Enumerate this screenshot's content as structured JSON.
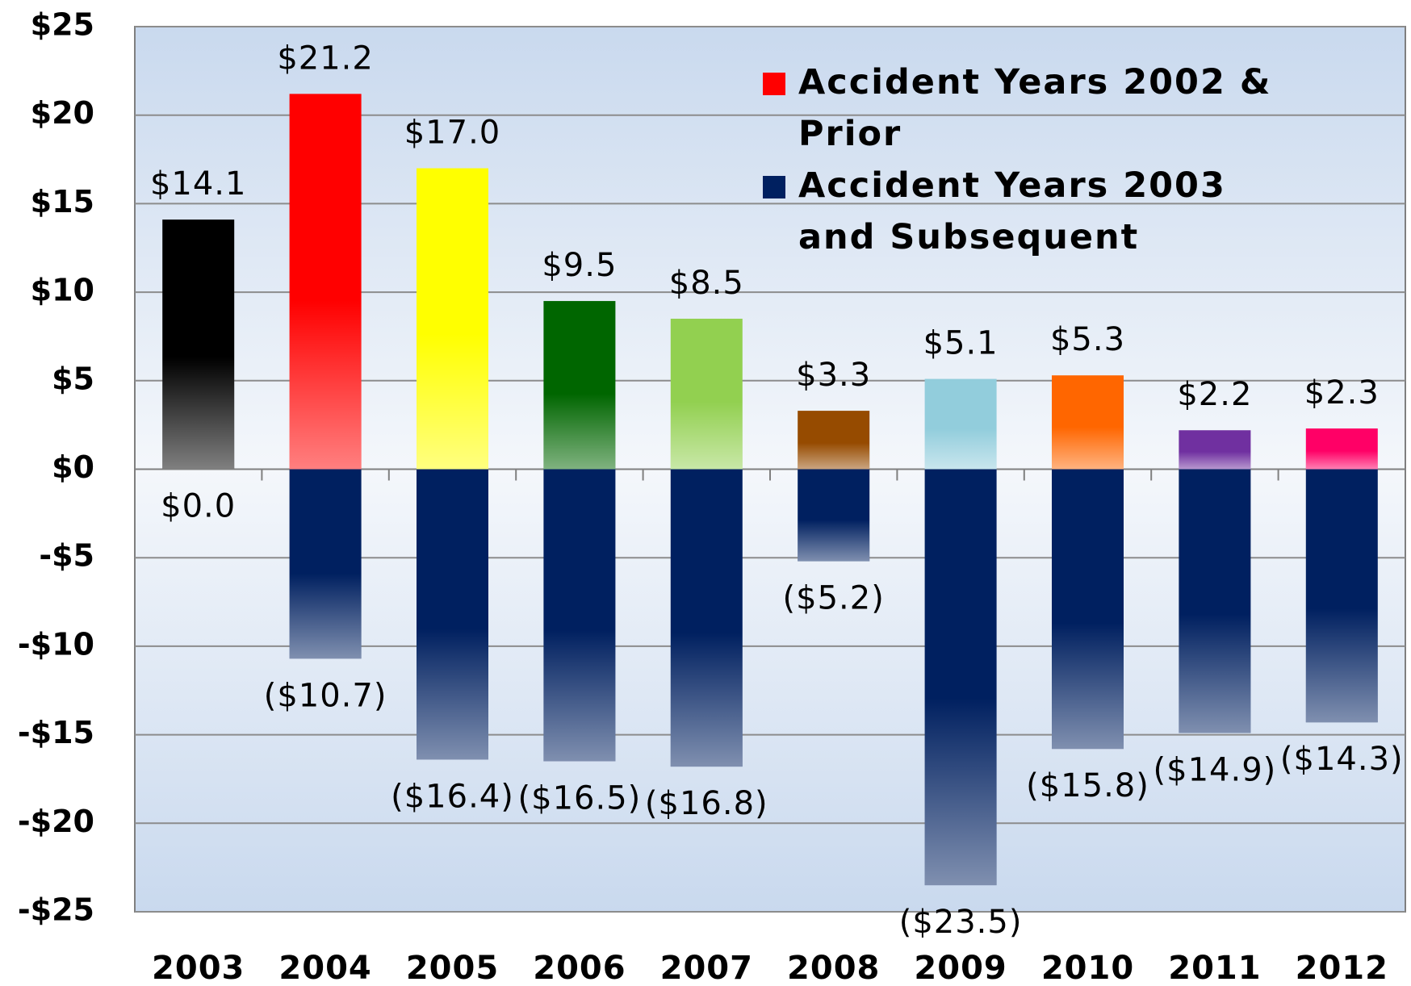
{
  "chart_data": {
    "type": "bar",
    "stacked": true,
    "categories": [
      "2003",
      "2004",
      "2005",
      "2006",
      "2007",
      "2008",
      "2009",
      "2010",
      "2011",
      "2012"
    ],
    "series": [
      {
        "name": "Accident Years 2002 & Prior",
        "color": "#ff0000",
        "colors": [
          "#000000",
          "#ff0000",
          "#ffff00",
          "#006600",
          "#92d050",
          "#964b00",
          "#92cddc",
          "#ff6600",
          "#7030a0",
          "#ff0066"
        ],
        "values": [
          14.1,
          21.2,
          17.0,
          9.5,
          8.5,
          3.3,
          5.1,
          5.3,
          2.2,
          2.3
        ],
        "value_labels": [
          "$14.1",
          "$21.2",
          "$17.0",
          "$9.5",
          "$8.5",
          "$3.3",
          "$5.1",
          "$5.3",
          "$2.2",
          "$2.3"
        ]
      },
      {
        "name": "Accident Years 2003 and Subsequent",
        "color": "#002060",
        "values": [
          0.0,
          -10.7,
          -16.4,
          -16.5,
          -16.8,
          -5.2,
          -23.5,
          -15.8,
          -14.9,
          -14.3
        ],
        "value_labels": [
          "$0.0",
          "($10.7)",
          "($16.4)",
          "($16.5)",
          "($16.8)",
          "($5.2)",
          "($23.5)",
          "($15.8)",
          "($14.9)",
          "($14.3)"
        ]
      }
    ],
    "ylim": [
      -25,
      25
    ],
    "yticks": [
      {
        "value": -25,
        "label": "-$25"
      },
      {
        "value": -20,
        "label": "-$20"
      },
      {
        "value": -15,
        "label": "-$15"
      },
      {
        "value": -10,
        "label": "-$10"
      },
      {
        "value": -5,
        "label": "-$5"
      },
      {
        "value": 0,
        "label": "$0"
      },
      {
        "value": 5,
        "label": "$5"
      },
      {
        "value": 10,
        "label": "$10"
      },
      {
        "value": 15,
        "label": "$15"
      },
      {
        "value": 20,
        "label": "$20"
      },
      {
        "value": 25,
        "label": "$25"
      }
    ],
    "grid": true,
    "legend": "upper right"
  }
}
